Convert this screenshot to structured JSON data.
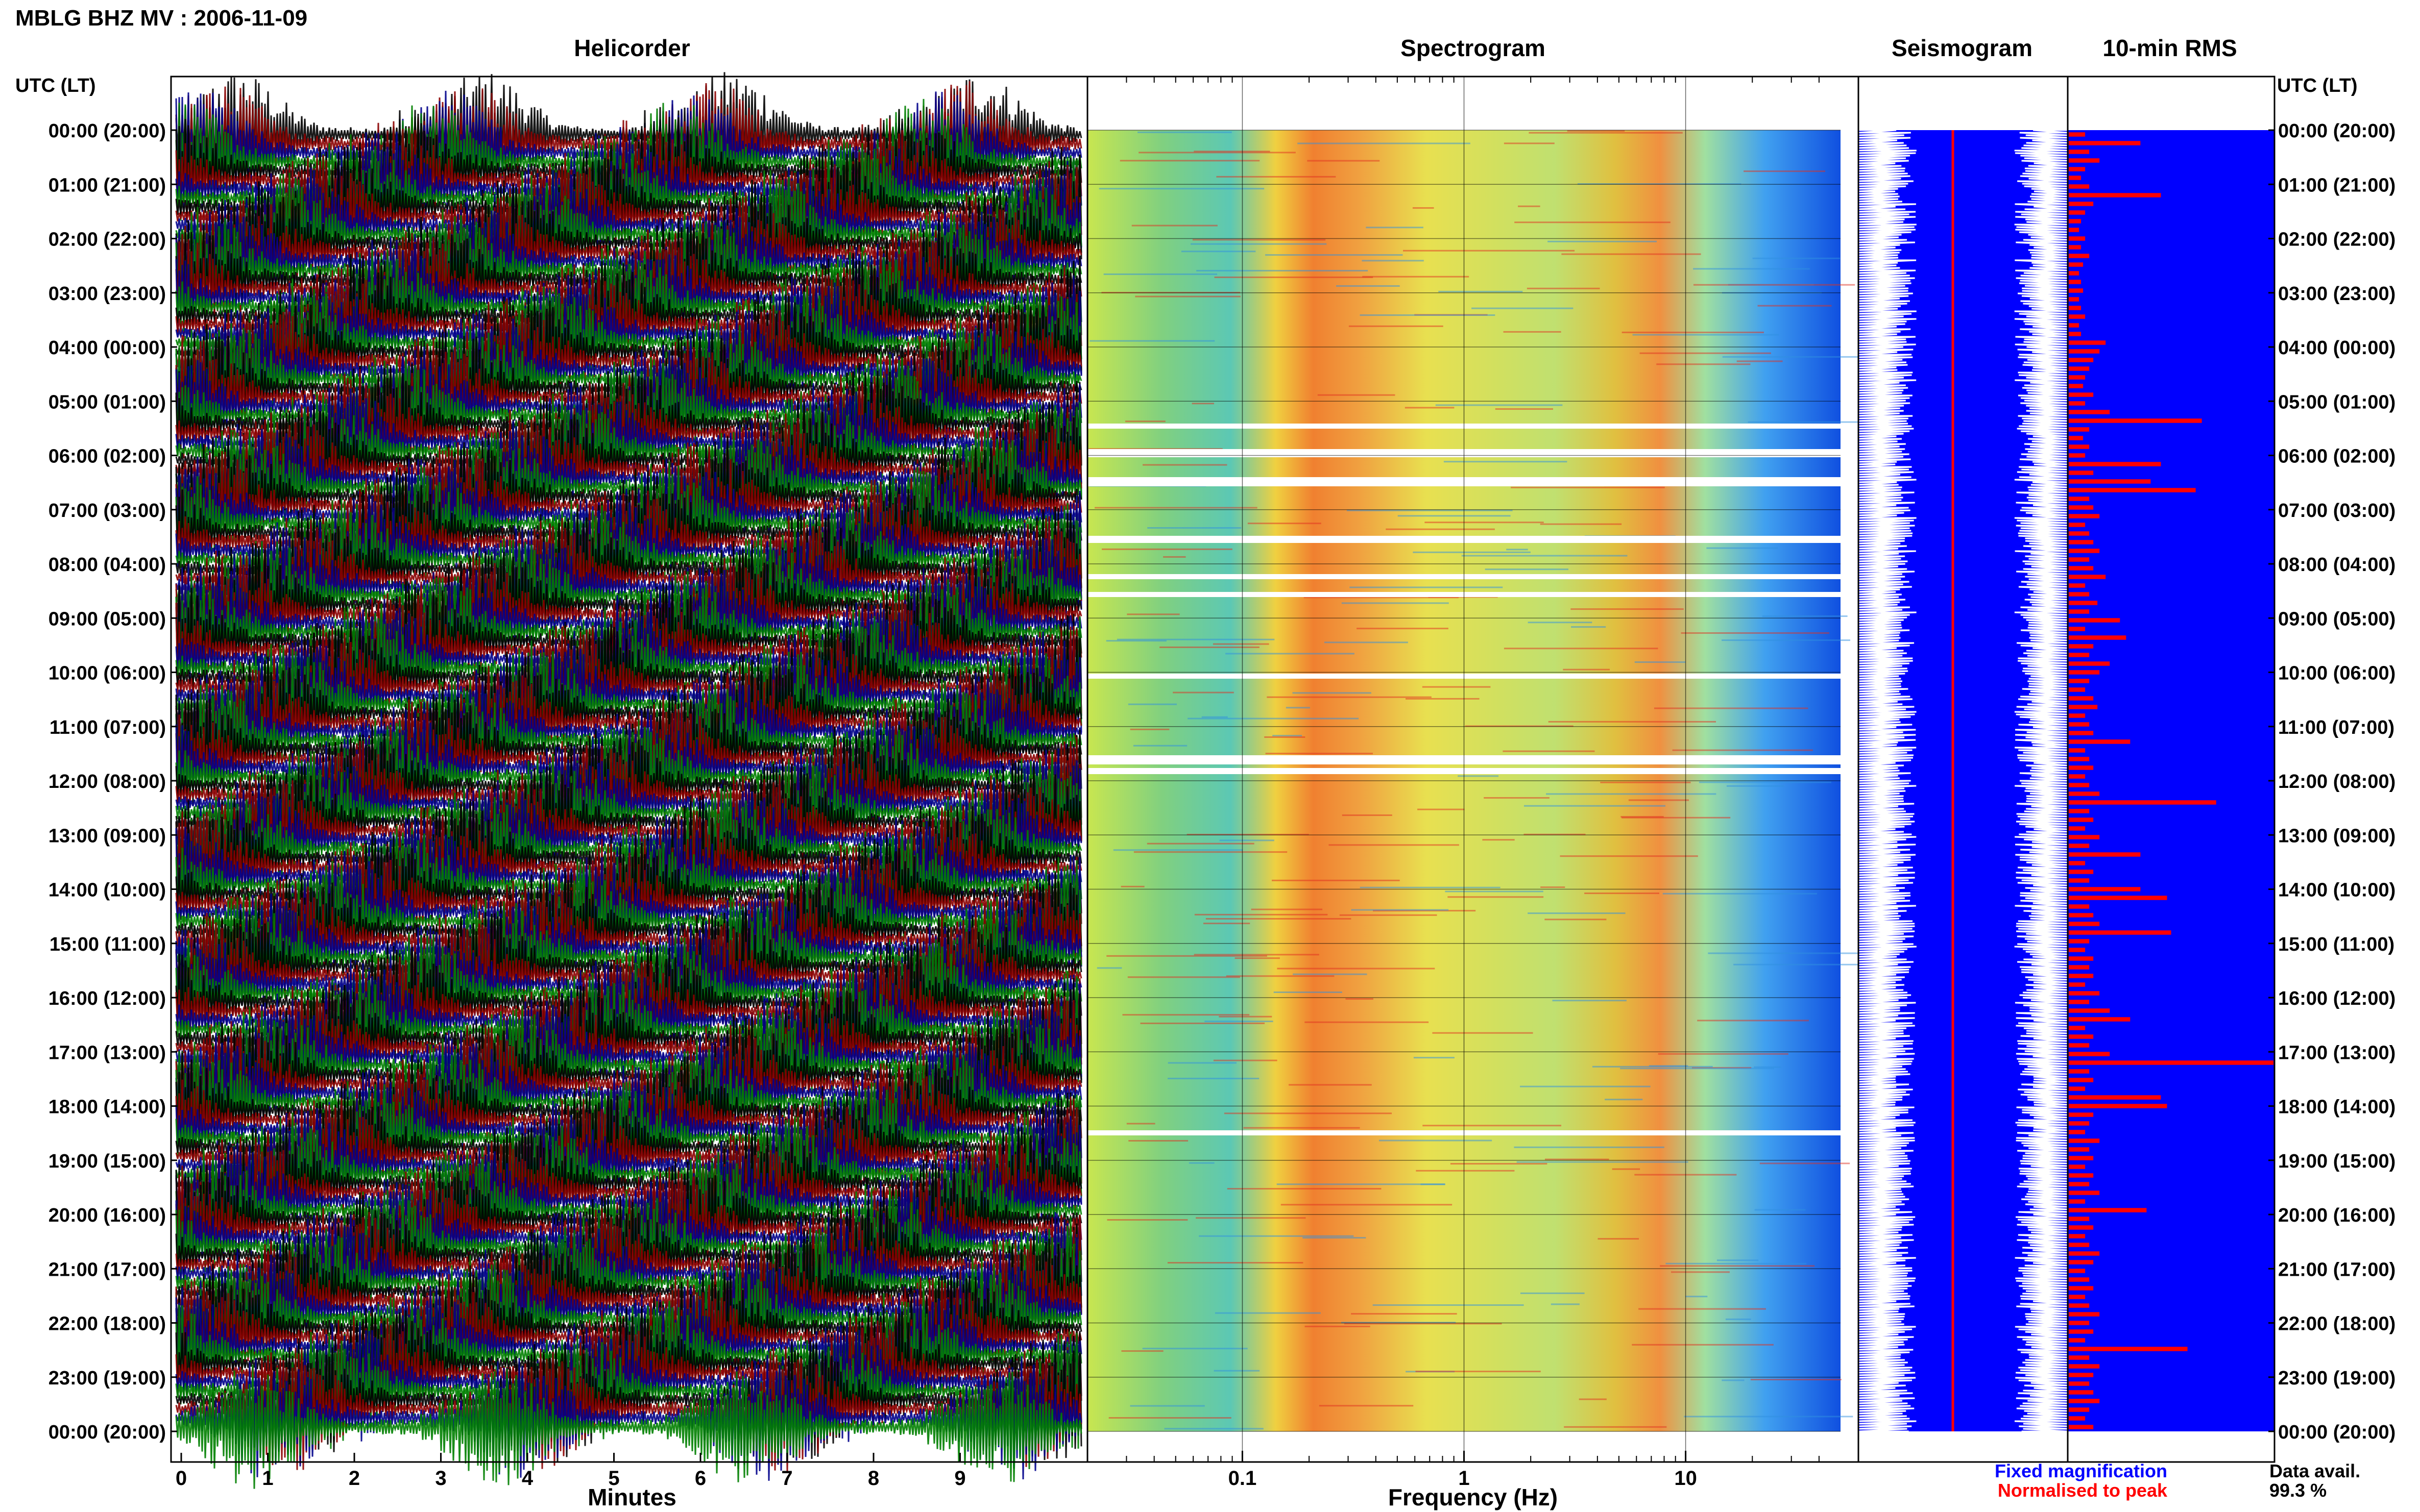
{
  "page": {
    "title": "MBLG BHZ MV : 2006-11-09"
  },
  "panels": {
    "helicorder": {
      "title": "Helicorder",
      "xlabel": "Minutes"
    },
    "spectrogram": {
      "title": "Spectrogram",
      "xlabel": "Frequency (Hz)"
    },
    "seismogram": {
      "title": "Seismogram"
    },
    "rms": {
      "title": "10-min RMS"
    }
  },
  "time_axis": {
    "left_header": "UTC (LT)",
    "right_header": "UTC (LT)",
    "labels": [
      "00:00 (20:00)",
      "01:00 (21:00)",
      "02:00 (22:00)",
      "03:00 (23:00)",
      "04:00 (00:00)",
      "05:00 (01:00)",
      "06:00 (02:00)",
      "07:00 (03:00)",
      "08:00 (04:00)",
      "09:00 (05:00)",
      "10:00 (06:00)",
      "11:00 (07:00)",
      "12:00 (08:00)",
      "13:00 (09:00)",
      "14:00 (10:00)",
      "15:00 (11:00)",
      "16:00 (12:00)",
      "17:00 (13:00)",
      "18:00 (14:00)",
      "19:00 (15:00)",
      "20:00 (16:00)",
      "21:00 (17:00)",
      "22:00 (18:00)",
      "23:00 (19:00)",
      "00:00 (20:00)"
    ]
  },
  "legend": {
    "fixed": "Fixed magnification",
    "normalised": "Normalised to peak",
    "data_avail_label": "Data avail.",
    "data_avail_value": "99.3 %",
    "colors": {
      "fixed": "#0000ff",
      "normalised": "#ff0000"
    }
  },
  "colors": {
    "helicorder_cycle": [
      "#000000",
      "#8b0000",
      "#00008b",
      "#007f00"
    ],
    "rms_background": "#0000ff",
    "rms_bars": "#ff0000",
    "seismogram_trace": "#ffffff",
    "seismogram_background": "#0000ff"
  },
  "chart_data": [
    {
      "type": "line",
      "name": "helicorder",
      "title": "Helicorder",
      "xlabel": "Minutes",
      "x_ticks": [
        "0",
        "1",
        "2",
        "3",
        "4",
        "5",
        "6",
        "7",
        "8",
        "9"
      ],
      "xlim": [
        0,
        10
      ],
      "rows_per_hour": 6
    },
    {
      "type": "heatmap",
      "name": "spectrogram",
      "title": "Spectrogram",
      "xlabel": "Frequency (Hz)",
      "x_scale": "log",
      "xlim": [
        0.02,
        50
      ],
      "x_ticks": [
        "0.1",
        "1",
        "10"
      ],
      "peak_bands_hz": [
        0.2,
        0.35,
        4.5
      ]
    },
    {
      "type": "line",
      "name": "seismogram",
      "title": "Seismogram"
    },
    {
      "type": "bar",
      "name": "10-min RMS",
      "title": "10-min RMS",
      "orientation": "horizontal",
      "interval_minutes": 10,
      "values": [
        0.08,
        0.35,
        0.1,
        0.15,
        0.08,
        0.06,
        0.1,
        0.45,
        0.12,
        0.08,
        0.06,
        0.05,
        0.08,
        0.06,
        0.1,
        0.07,
        0.05,
        0.06,
        0.07,
        0.05,
        0.06,
        0.08,
        0.05,
        0.06,
        0.18,
        0.15,
        0.12,
        0.1,
        0.08,
        0.07,
        0.12,
        0.08,
        0.2,
        0.65,
        0.1,
        0.07,
        0.1,
        0.08,
        0.45,
        0.12,
        0.4,
        0.62,
        0.1,
        0.12,
        0.15,
        0.08,
        0.1,
        0.12,
        0.15,
        0.1,
        0.12,
        0.18,
        0.08,
        0.1,
        0.14,
        0.1,
        0.25,
        0.08,
        0.28,
        0.12,
        0.1,
        0.2,
        0.15,
        0.1,
        0.08,
        0.12,
        0.14,
        0.08,
        0.1,
        0.12,
        0.3,
        0.08,
        0.1,
        0.12,
        0.08,
        0.1,
        0.15,
        0.72,
        0.1,
        0.12,
        0.08,
        0.15,
        0.1,
        0.35,
        0.08,
        0.12,
        0.1,
        0.35,
        0.48,
        0.1,
        0.12,
        0.15,
        0.5,
        0.1,
        0.08,
        0.12,
        0.1,
        0.12,
        0.08,
        0.15,
        0.1,
        0.2,
        0.3,
        0.08,
        0.12,
        0.1,
        0.2,
        1.0,
        0.1,
        0.12,
        0.08,
        0.45,
        0.48,
        0.12,
        0.1,
        0.08,
        0.15,
        0.1,
        0.12,
        0.08,
        0.12,
        0.1,
        0.15,
        0.08,
        0.38,
        0.1,
        0.12,
        0.08,
        0.1,
        0.15,
        0.12,
        0.08,
        0.1,
        0.12,
        0.08,
        0.1,
        0.15,
        0.1,
        0.12,
        0.08,
        0.58,
        0.1,
        0.15,
        0.12,
        0.1,
        0.12,
        0.15,
        0.1,
        0.08,
        0.12
      ]
    }
  ]
}
